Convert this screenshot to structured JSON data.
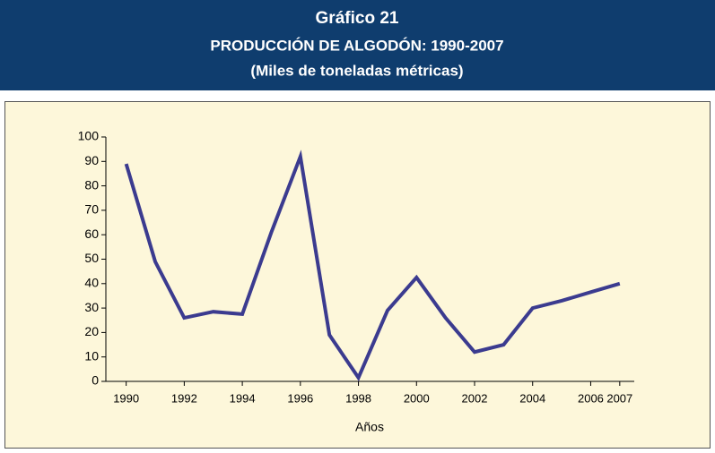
{
  "chart_data": {
    "type": "line",
    "title": "Gráfico  21",
    "subtitle": "PRODUCCIÓN DE ALGODÓN: 1990-2007",
    "unit_note": "(Miles de toneladas métricas)",
    "xlabel": "Años",
    "x": [
      1990,
      1991,
      1992,
      1993,
      1994,
      1995,
      1996,
      1997,
      1998,
      1999,
      2000,
      2001,
      2002,
      2003,
      2004,
      2005,
      2006,
      2007
    ],
    "series": [
      {
        "name": "Producción",
        "color": "#3b3b8f",
        "values": [
          89,
          49,
          26,
          28.5,
          27.5,
          61,
          92,
          19,
          1.5,
          29,
          42.5,
          26,
          12,
          15,
          30,
          33,
          36.5,
          40
        ]
      }
    ],
    "xlim": [
      1989.3,
      2007.5
    ],
    "xticks": [
      1990,
      1992,
      1994,
      1996,
      1998,
      2000,
      2002,
      2004,
      2006,
      2007
    ],
    "ylim": [
      0,
      100
    ],
    "yticks": [
      0,
      10,
      20,
      30,
      40,
      50,
      60,
      70,
      80,
      90,
      100
    ]
  }
}
